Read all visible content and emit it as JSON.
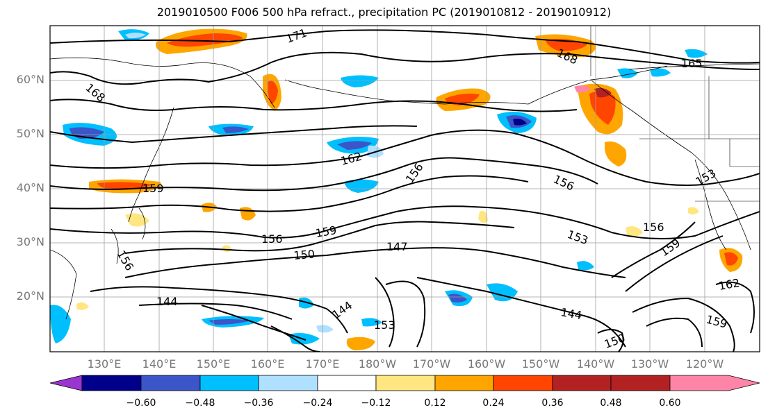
{
  "title": "2019010500 F006 500 hPa refract., precipitation PC (2019010812 - 2019010912)",
  "lat_labels": [
    "60°N",
    "50°N",
    "40°N",
    "30°N",
    "20°N"
  ],
  "lon_labels": [
    "130°E",
    "140°E",
    "150°E",
    "160°E",
    "170°E",
    "180°W",
    "170°W",
    "160°W",
    "150°W",
    "140°W",
    "130°W",
    "120°W"
  ],
  "colorbar": {
    "ticks": [
      "−0.60",
      "−0.48",
      "−0.36",
      "−0.24",
      "−0.12",
      "0.12",
      "0.24",
      "0.36",
      "0.48",
      "0.60"
    ],
    "colors": [
      "#9b35d0",
      "#00008b",
      "#3a56c8",
      "#00bfff",
      "#b0e0ff",
      "#ffffff",
      "#ffe680",
      "#ffa500",
      "#ff4500",
      "#b22222",
      "#ff85a8"
    ]
  },
  "contour_labels": [
    {
      "text": "171"
    },
    {
      "text": "168"
    },
    {
      "text": "165"
    },
    {
      "text": "168"
    },
    {
      "text": "162"
    },
    {
      "text": "156"
    },
    {
      "text": "159"
    },
    {
      "text": "156"
    },
    {
      "text": "153"
    },
    {
      "text": "156"
    },
    {
      "text": "159"
    },
    {
      "text": "150"
    },
    {
      "text": "147"
    },
    {
      "text": "153"
    },
    {
      "text": "156"
    },
    {
      "text": "159"
    },
    {
      "text": "162"
    },
    {
      "text": "144"
    },
    {
      "text": "144"
    },
    {
      "text": "144"
    },
    {
      "text": "153"
    },
    {
      "text": "159"
    },
    {
      "text": "150"
    },
    {
      "text": "156"
    }
  ]
}
